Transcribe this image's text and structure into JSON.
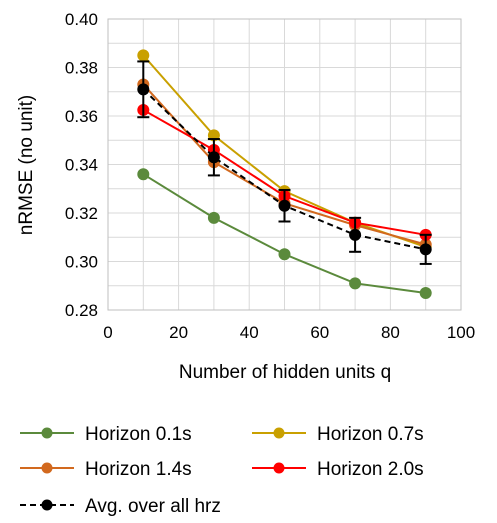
{
  "chart_data": {
    "type": "line",
    "title": "",
    "xlabel": "Number of hidden units q",
    "ylabel": "nRMSE (no unit)",
    "xlim": [
      0,
      100
    ],
    "ylim": [
      0.28,
      0.4
    ],
    "x_ticks": [
      "0",
      "20",
      "40",
      "60",
      "80",
      "100"
    ],
    "y_ticks": [
      "0.28",
      "0.30",
      "0.32",
      "0.34",
      "0.36",
      "0.38",
      "0.40"
    ],
    "x": [
      10,
      30,
      50,
      70,
      90
    ],
    "grid": true,
    "legend_position": "bottom",
    "series": [
      {
        "name": "Horizon 0.1s",
        "color": "#5b8a3c",
        "values": [
          0.336,
          0.318,
          0.303,
          0.291,
          0.287
        ]
      },
      {
        "name": "Horizon 0.7s",
        "color": "#c9a000",
        "values": [
          0.385,
          0.352,
          0.329,
          0.316,
          0.306
        ]
      },
      {
        "name": "Horizon 1.4s",
        "color": "#d2691e",
        "values": [
          0.373,
          0.341,
          0.324,
          0.315,
          0.307
        ]
      },
      {
        "name": "Horizon 2.0s",
        "color": "#ff0000",
        "values": [
          0.3625,
          0.346,
          0.327,
          0.316,
          0.311
        ]
      },
      {
        "name": "Avg. over all hrz",
        "color": "#000000",
        "dashed": true,
        "values": [
          0.371,
          0.343,
          0.323,
          0.311,
          0.305
        ],
        "error": [
          0.0115,
          0.0075,
          0.0065,
          0.007,
          0.006
        ]
      }
    ]
  }
}
